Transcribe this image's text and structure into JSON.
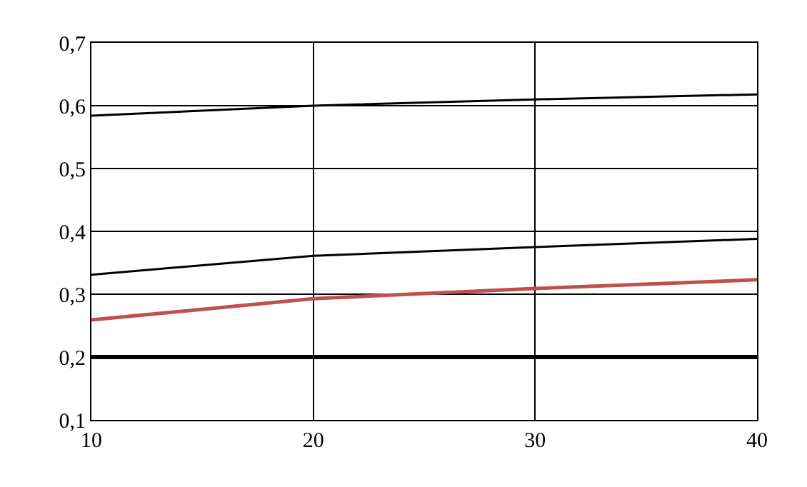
{
  "chart_data": {
    "type": "line",
    "x": [
      10,
      20,
      30,
      40
    ],
    "series": [
      {
        "color": "#000000",
        "values": [
          0.584,
          0.6,
          0.61,
          0.618
        ]
      },
      {
        "color": "#000000",
        "values": [
          0.331,
          0.361,
          0.375,
          0.388
        ]
      },
      {
        "color": "#c0504d",
        "values": [
          0.259,
          0.293,
          0.309,
          0.323
        ]
      },
      {
        "color": "#000000",
        "values": [
          0.2,
          0.2,
          0.2,
          0.2
        ]
      }
    ],
    "xlim": [
      10,
      40
    ],
    "xticks": [
      10,
      20,
      30,
      40
    ],
    "ylim": [
      0.1,
      0.7
    ],
    "yticks": [
      {
        "value": 0.1,
        "label": "0,1"
      },
      {
        "value": 0.2,
        "label": "0,2"
      },
      {
        "value": 0.3,
        "label": "0,3"
      },
      {
        "value": 0.4,
        "label": "0,4"
      },
      {
        "value": 0.5,
        "label": "0,5"
      },
      {
        "value": 0.6,
        "label": "0,6"
      },
      {
        "value": 0.7,
        "label": "0,7"
      }
    ],
    "grid": true,
    "marker": "none",
    "line_style": "solid"
  }
}
